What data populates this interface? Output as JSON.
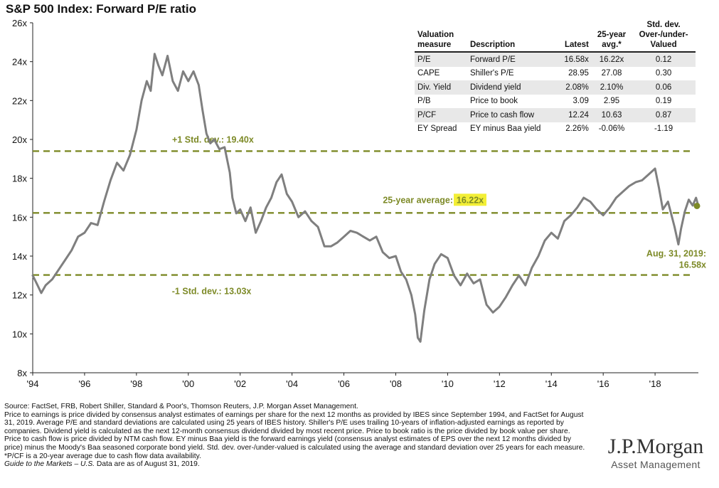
{
  "page_title": "S&P 500 Index: Forward P/E ratio",
  "chart_data": {
    "type": "line",
    "title": "S&P 500 Index: Forward P/E ratio",
    "xlabel": "",
    "ylabel": "",
    "x_range": [
      1994.0,
      2019.67
    ],
    "ylim": [
      8,
      26
    ],
    "y_ticks": [
      8,
      10,
      12,
      14,
      16,
      18,
      20,
      22,
      24,
      26
    ],
    "y_tick_labels": [
      "8x",
      "10x",
      "12x",
      "14x",
      "16x",
      "18x",
      "20x",
      "22x",
      "24x",
      "26x"
    ],
    "x_ticks": [
      1994,
      1996,
      1998,
      2000,
      2002,
      2004,
      2006,
      2008,
      2010,
      2012,
      2014,
      2016,
      2018
    ],
    "x_tick_labels": [
      "'94",
      "'96",
      "'98",
      "'00",
      "'02",
      "'04",
      "'06",
      "'08",
      "'10",
      "'12",
      "'14",
      "'16",
      "'18"
    ],
    "series": [
      {
        "name": "Forward P/E",
        "color": "#7f7f7f",
        "x": [
          1994.0,
          1994.15,
          1994.33,
          1994.5,
          1994.75,
          1995.0,
          1995.25,
          1995.5,
          1995.75,
          1996.0,
          1996.25,
          1996.5,
          1996.75,
          1997.0,
          1997.25,
          1997.5,
          1997.75,
          1998.0,
          1998.2,
          1998.4,
          1998.55,
          1998.7,
          1998.85,
          1999.0,
          1999.2,
          1999.4,
          1999.6,
          1999.8,
          2000.0,
          2000.2,
          2000.4,
          2000.55,
          2000.7,
          2000.85,
          2001.0,
          2001.2,
          2001.4,
          2001.6,
          2001.7,
          2001.85,
          2002.0,
          2002.2,
          2002.4,
          2002.6,
          2002.8,
          2003.0,
          2003.2,
          2003.4,
          2003.6,
          2003.8,
          2004.0,
          2004.25,
          2004.5,
          2004.75,
          2005.0,
          2005.25,
          2005.5,
          2005.75,
          2006.0,
          2006.25,
          2006.5,
          2006.75,
          2007.0,
          2007.25,
          2007.5,
          2007.75,
          2008.0,
          2008.2,
          2008.4,
          2008.6,
          2008.75,
          2008.85,
          2008.95,
          2009.1,
          2009.3,
          2009.5,
          2009.75,
          2010.0,
          2010.25,
          2010.5,
          2010.75,
          2011.0,
          2011.25,
          2011.5,
          2011.75,
          2012.0,
          2012.25,
          2012.5,
          2012.75,
          2013.0,
          2013.25,
          2013.5,
          2013.75,
          2014.0,
          2014.25,
          2014.5,
          2014.75,
          2015.0,
          2015.25,
          2015.5,
          2015.75,
          2016.0,
          2016.25,
          2016.5,
          2016.75,
          2017.0,
          2017.25,
          2017.5,
          2017.75,
          2018.0,
          2018.15,
          2018.3,
          2018.5,
          2018.75,
          2018.9,
          2019.0,
          2019.15,
          2019.3,
          2019.45,
          2019.58,
          2019.67
        ],
        "values": [
          13.0,
          12.6,
          12.1,
          12.5,
          12.8,
          13.3,
          13.8,
          14.3,
          15.0,
          15.2,
          15.7,
          15.6,
          16.8,
          17.9,
          18.8,
          18.4,
          19.2,
          20.5,
          22.0,
          23.0,
          22.5,
          24.4,
          23.8,
          23.3,
          24.3,
          23.0,
          22.5,
          23.5,
          23.0,
          23.5,
          22.8,
          21.5,
          20.3,
          19.8,
          20.0,
          19.5,
          19.6,
          18.3,
          17.0,
          16.2,
          16.4,
          15.8,
          16.5,
          15.2,
          15.8,
          16.5,
          17.0,
          17.8,
          18.2,
          17.2,
          16.8,
          16.0,
          16.3,
          15.8,
          15.5,
          14.5,
          14.5,
          14.7,
          15.0,
          15.3,
          15.2,
          15.0,
          14.8,
          15.0,
          14.2,
          13.9,
          14.0,
          13.2,
          12.8,
          12.0,
          11.0,
          9.8,
          9.6,
          11.2,
          12.8,
          13.6,
          14.1,
          13.9,
          13.0,
          12.5,
          13.1,
          12.6,
          12.8,
          11.5,
          11.1,
          11.4,
          11.9,
          12.5,
          13.0,
          12.5,
          13.4,
          14.0,
          14.8,
          15.2,
          14.9,
          15.8,
          16.1,
          16.5,
          17.0,
          16.8,
          16.4,
          16.1,
          16.5,
          17.0,
          17.3,
          17.6,
          17.8,
          17.9,
          18.2,
          18.5,
          17.5,
          16.4,
          16.8,
          15.5,
          14.6,
          15.4,
          16.3,
          16.9,
          16.6,
          17.0,
          16.58
        ]
      }
    ],
    "reference_lines": [
      {
        "name": "+1 Std. dev.",
        "value": 19.4,
        "label": "+1 Std. dev.: 19.40x"
      },
      {
        "name": "25-year average",
        "value": 16.22,
        "label_prefix": "25-year average: ",
        "label_value": "16.22x"
      },
      {
        "name": "-1 Std. dev.",
        "value": 13.03,
        "label": "-1 Std. dev.: 13.03x"
      }
    ],
    "annotations": [
      {
        "text_line1": "Aug. 31, 2019:",
        "text_line2": "16.58x",
        "x": 2019.67,
        "y": 16.58
      }
    ],
    "colors": {
      "line": "#7f7f7f",
      "reference": "#7d8a27",
      "highlight": "#f3ef36",
      "last_point": "#7d8a27"
    }
  },
  "valuation_table": {
    "headers": {
      "measure": [
        "Valuation",
        "measure"
      ],
      "description": "Description",
      "latest": "Latest",
      "avg": [
        "25-year",
        "avg.*"
      ],
      "stddev": [
        "Std. dev.",
        "Over-/under-",
        "Valued"
      ]
    },
    "rows": [
      {
        "measure": "P/E",
        "description": "Forward P/E",
        "latest": "16.58x",
        "avg": "16.22x",
        "stddev": "0.12"
      },
      {
        "measure": "CAPE",
        "description": "Shiller's P/E",
        "latest": "28.95",
        "avg": "27.08",
        "stddev": "0.30"
      },
      {
        "measure": "Div. Yield",
        "description": "Dividend yield",
        "latest": "2.08%",
        "avg": "2.10%",
        "stddev": "0.06"
      },
      {
        "measure": "P/B",
        "description": "Price to book",
        "latest": "3.09",
        "avg": "2.95",
        "stddev": "0.19"
      },
      {
        "measure": "P/CF",
        "description": "Price to cash flow",
        "latest": "12.24",
        "avg": "10.63",
        "stddev": "0.87"
      },
      {
        "measure": "EY Spread",
        "description": "EY minus Baa yield",
        "latest": "2.26%",
        "avg": "-0.06%",
        "stddev": "-1.19"
      }
    ]
  },
  "footer": {
    "source": "Source: FactSet, FRB, Robert Shiller, Standard & Poor's, Thomson Reuters, J.P. Morgan Asset Management.",
    "notes": "Price to earnings is price divided by consensus analyst estimates of earnings per share for the next 12 months as provided by IBES since September 1994, and FactSet for August 31, 2019. Average P/E and standard deviations are calculated using 25 years of IBES history. Shiller's P/E uses trailing 10-years of inflation-adjusted earnings as reported by companies. Dividend yield is calculated as the next 12-month consensus dividend divided by most recent price. Price to book ratio is the price divided by book value per share. Price to cash flow is price divided by NTM cash flow. EY minus Baa yield is the forward earnings yield (consensus analyst estimates of EPS over the next 12 months divided by price) minus the Moody's Baa seasoned corporate bond yield. Std. dev. over-/under-valued is calculated using the average and standard deviation over 25 years for each measure.",
    "pcf_note": "*P/CF is a 20-year average due to cash flow data availability.",
    "guide_title": "Guide to the Markets – U.S.",
    "guide_rest": " Data are as of August 31, 2019."
  },
  "logo": {
    "name": "J.P.Morgan",
    "subtitle": "Asset Management"
  }
}
